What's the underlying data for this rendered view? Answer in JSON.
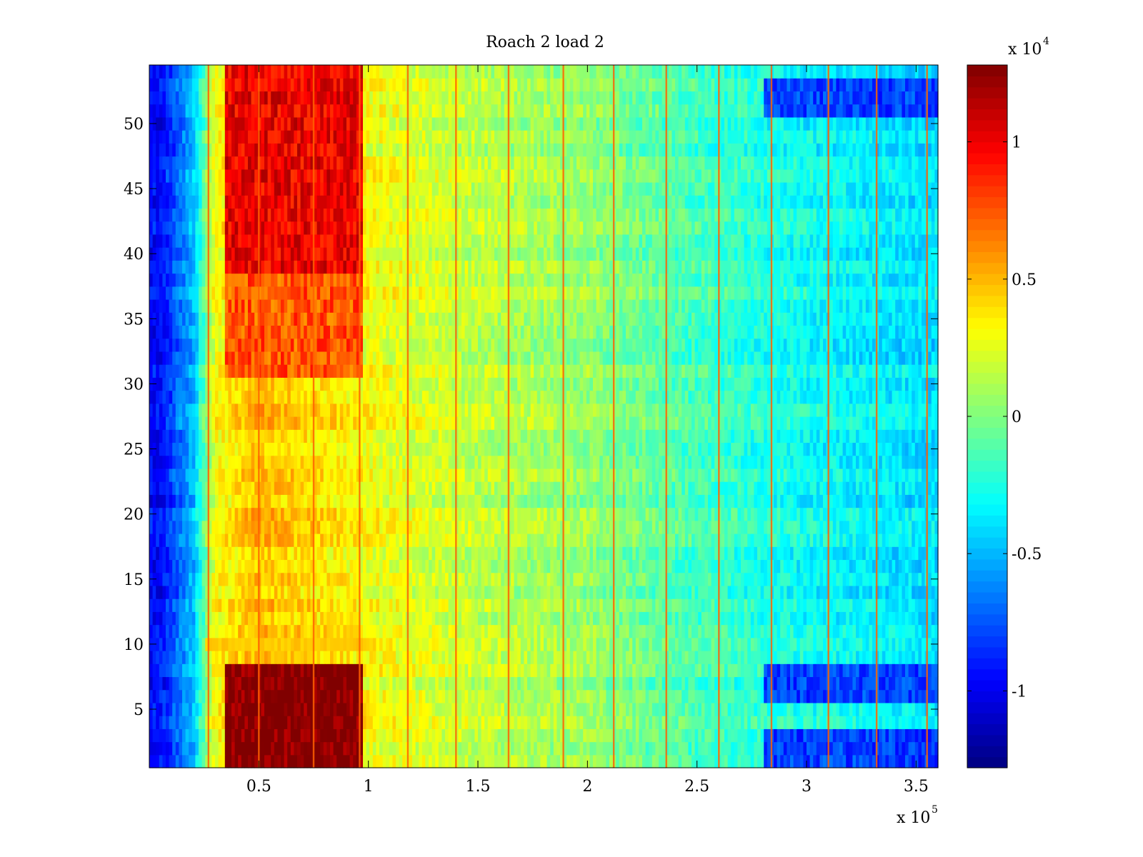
{
  "chart_data": {
    "type": "heatmap",
    "title": "Roach 2 load 2",
    "xlabel": "",
    "ylabel": "",
    "x_scale_label": "x 10",
    "x_scale_exponent": "5",
    "x_range": [
      0,
      3.6
    ],
    "x_unit_multiplier": 100000,
    "y_range": [
      0.5,
      54.5
    ],
    "x_ticks": [
      0.5,
      1,
      1.5,
      2,
      2.5,
      3,
      3.5
    ],
    "x_tick_labels": [
      "0.5",
      "1",
      "1.5",
      "2",
      "2.5",
      "3",
      "3.5"
    ],
    "y_ticks": [
      5,
      10,
      15,
      20,
      25,
      30,
      35,
      40,
      45,
      50
    ],
    "y_tick_labels": [
      "5",
      "10",
      "15",
      "20",
      "25",
      "30",
      "35",
      "40",
      "45",
      "50"
    ],
    "rows": 54,
    "colorbar": {
      "colormap": "jet",
      "range": [
        -1.28,
        1.28
      ],
      "scale_label": "x 10",
      "scale_exponent": "4",
      "ticks": [
        -1,
        -0.5,
        0,
        0.5,
        1
      ],
      "tick_labels": [
        "-1",
        "-0.5",
        "0",
        "0.5",
        "1"
      ]
    },
    "approx_structure": {
      "background_by_x": [
        {
          "x": 0.05,
          "value": -0.95
        },
        {
          "x": 0.2,
          "value": -0.5
        },
        {
          "x": 0.3,
          "value": 0.3
        },
        {
          "x": 0.5,
          "value": 0.5
        },
        {
          "x": 1.0,
          "value": 0.3
        },
        {
          "x": 1.5,
          "value": 0.15
        },
        {
          "x": 2.0,
          "value": 0.05
        },
        {
          "x": 2.5,
          "value": -0.15
        },
        {
          "x": 3.0,
          "value": -0.3
        },
        {
          "x": 3.6,
          "value": -0.4
        }
      ],
      "hot_blocks": [
        {
          "x_from": 0.35,
          "x_to": 0.98,
          "y_from": 1,
          "y_to": 8,
          "value": 1.3
        },
        {
          "x_from": 0.35,
          "x_to": 0.98,
          "y_from": 39,
          "y_to": 54,
          "value": 1.0
        },
        {
          "x_from": 0.35,
          "x_to": 0.98,
          "y_from": 31,
          "y_to": 38,
          "value": 0.75
        }
      ],
      "vertical_lines_x": [
        0.27,
        0.5,
        0.75,
        0.96,
        1.18,
        1.4,
        1.64,
        1.89,
        2.12,
        2.36,
        2.6,
        2.84,
        3.1,
        3.32,
        3.55
      ],
      "cold_band_rows": [
        1,
        2,
        3,
        6,
        7,
        8,
        51,
        52,
        53
      ],
      "cold_band_x_from": 2.8,
      "cold_band_value": -0.8
    }
  }
}
